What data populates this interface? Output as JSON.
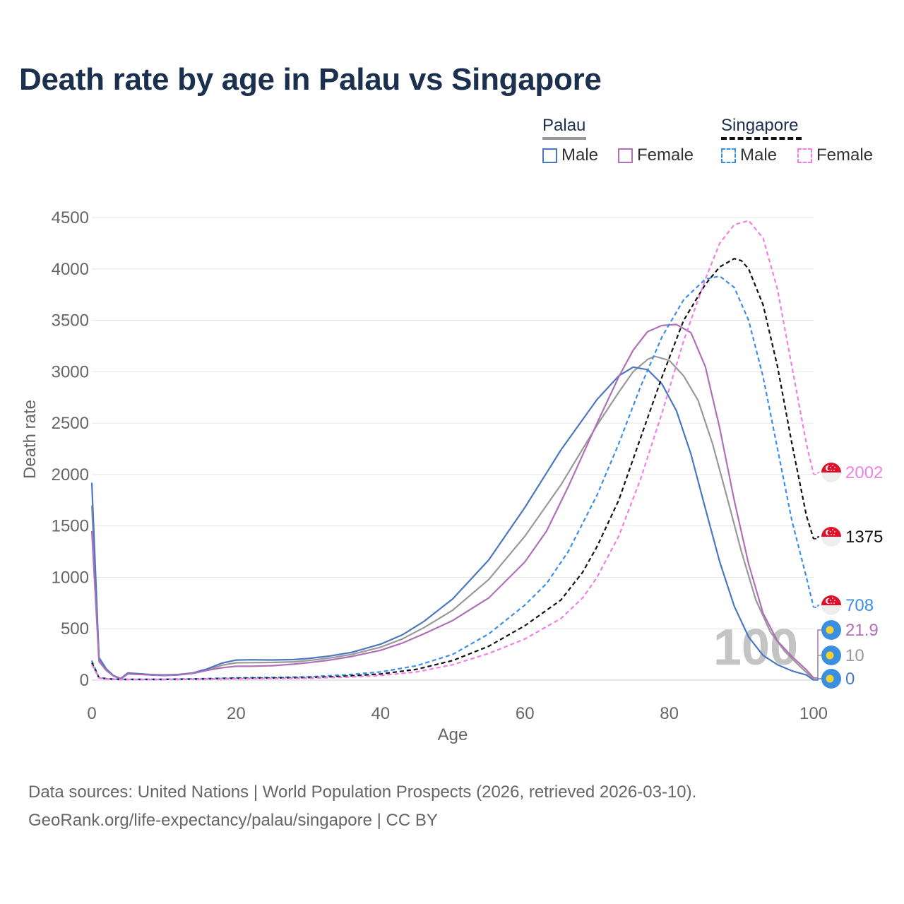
{
  "title": "Death rate by age in Palau vs Singapore",
  "legend": {
    "groups": [
      {
        "name": "Palau",
        "line_color": "#999999",
        "dash": false,
        "items": [
          {
            "label": "Male",
            "color": "#4a78c0"
          },
          {
            "label": "Female",
            "color": "#b070b8"
          }
        ]
      },
      {
        "name": "Singapore",
        "line_color": "#111111",
        "dash": true,
        "items": [
          {
            "label": "Male",
            "color": "#3c8ee8"
          },
          {
            "label": "Female",
            "color": "#f080e8"
          }
        ]
      }
    ]
  },
  "watermark": "100",
  "end_labels": [
    {
      "value": "2002",
      "color": "#f080e8",
      "icon": "singapore-flag-icon"
    },
    {
      "value": "1375",
      "color": "#111111",
      "icon": "singapore-flag-icon"
    },
    {
      "value": "708",
      "color": "#3c8ee8",
      "icon": "singapore-flag-icon"
    },
    {
      "value": "21.9",
      "color": "#b070b8",
      "icon": "palau-flag-icon"
    },
    {
      "value": "10",
      "color": "#999999",
      "icon": "palau-flag-icon"
    },
    {
      "value": "0",
      "color": "#4a78c0",
      "icon": "palau-flag-icon"
    }
  ],
  "sources": {
    "line1": "Data sources: United Nations | World Population Prospects (2026, retrieved 2026-03-10).",
    "line2": "GeoRank.org/life-expectancy/palau/singapore | CC BY"
  },
  "chart_data": {
    "type": "line",
    "xlabel": "Age",
    "ylabel": "Death rate",
    "xlim": [
      0,
      100
    ],
    "ylim": [
      0,
      4500
    ],
    "xticks": [
      0,
      20,
      40,
      60,
      80,
      100
    ],
    "yticks": [
      0,
      500,
      1000,
      1500,
      2000,
      2500,
      3000,
      3500,
      4000,
      4500
    ],
    "grid": true,
    "series": [
      {
        "name": "Palau Male",
        "color": "#4a78c0",
        "dash": false,
        "points": [
          [
            0,
            1920
          ],
          [
            1,
            220
          ],
          [
            2,
            110
          ],
          [
            3,
            45
          ],
          [
            4,
            15
          ],
          [
            5,
            70
          ],
          [
            8,
            55
          ],
          [
            10,
            50
          ],
          [
            12,
            55
          ],
          [
            14,
            70
          ],
          [
            16,
            110
          ],
          [
            18,
            165
          ],
          [
            20,
            195
          ],
          [
            22,
            198
          ],
          [
            25,
            196
          ],
          [
            28,
            200
          ],
          [
            30,
            210
          ],
          [
            33,
            235
          ],
          [
            36,
            270
          ],
          [
            40,
            350
          ],
          [
            43,
            440
          ],
          [
            46,
            570
          ],
          [
            50,
            790
          ],
          [
            55,
            1170
          ],
          [
            60,
            1680
          ],
          [
            65,
            2240
          ],
          [
            70,
            2730
          ],
          [
            73,
            2960
          ],
          [
            75,
            3045
          ],
          [
            77,
            3020
          ],
          [
            79,
            2880
          ],
          [
            81,
            2620
          ],
          [
            83,
            2200
          ],
          [
            85,
            1670
          ],
          [
            87,
            1150
          ],
          [
            89,
            720
          ],
          [
            91,
            420
          ],
          [
            93,
            240
          ],
          [
            95,
            150
          ],
          [
            97,
            90
          ],
          [
            99,
            50
          ],
          [
            100,
            0
          ]
        ]
      },
      {
        "name": "Palau Female",
        "color": "#b070b8",
        "dash": false,
        "points": [
          [
            0,
            1450
          ],
          [
            1,
            180
          ],
          [
            2,
            95
          ],
          [
            3,
            40
          ],
          [
            4,
            12
          ],
          [
            5,
            60
          ],
          [
            8,
            50
          ],
          [
            10,
            45
          ],
          [
            12,
            50
          ],
          [
            14,
            65
          ],
          [
            16,
            95
          ],
          [
            18,
            120
          ],
          [
            20,
            135
          ],
          [
            22,
            135
          ],
          [
            25,
            140
          ],
          [
            28,
            155
          ],
          [
            30,
            170
          ],
          [
            33,
            195
          ],
          [
            36,
            230
          ],
          [
            40,
            290
          ],
          [
            43,
            360
          ],
          [
            46,
            450
          ],
          [
            50,
            580
          ],
          [
            55,
            800
          ],
          [
            60,
            1150
          ],
          [
            63,
            1450
          ],
          [
            66,
            1880
          ],
          [
            70,
            2500
          ],
          [
            73,
            2950
          ],
          [
            75,
            3210
          ],
          [
            77,
            3390
          ],
          [
            79,
            3450
          ],
          [
            81,
            3460
          ],
          [
            83,
            3380
          ],
          [
            85,
            3050
          ],
          [
            87,
            2450
          ],
          [
            89,
            1750
          ],
          [
            91,
            1130
          ],
          [
            93,
            650
          ],
          [
            95,
            380
          ],
          [
            97,
            230
          ],
          [
            99,
            100
          ],
          [
            100,
            21.9
          ]
        ]
      },
      {
        "name": "Palau Both",
        "color": "#999999",
        "dash": false,
        "points": [
          [
            0,
            1700
          ],
          [
            1,
            200
          ],
          [
            2,
            100
          ],
          [
            3,
            42
          ],
          [
            4,
            14
          ],
          [
            5,
            65
          ],
          [
            8,
            52
          ],
          [
            10,
            48
          ],
          [
            12,
            52
          ],
          [
            14,
            68
          ],
          [
            16,
            100
          ],
          [
            18,
            145
          ],
          [
            20,
            168
          ],
          [
            22,
            170
          ],
          [
            25,
            172
          ],
          [
            28,
            178
          ],
          [
            30,
            190
          ],
          [
            33,
            215
          ],
          [
            36,
            250
          ],
          [
            40,
            320
          ],
          [
            43,
            400
          ],
          [
            46,
            510
          ],
          [
            50,
            680
          ],
          [
            55,
            980
          ],
          [
            60,
            1400
          ],
          [
            65,
            1900
          ],
          [
            70,
            2480
          ],
          [
            73,
            2800
          ],
          [
            75,
            3000
          ],
          [
            77,
            3120
          ],
          [
            78,
            3150
          ],
          [
            80,
            3110
          ],
          [
            82,
            2960
          ],
          [
            84,
            2720
          ],
          [
            86,
            2300
          ],
          [
            88,
            1780
          ],
          [
            90,
            1250
          ],
          [
            92,
            780
          ],
          [
            94,
            470
          ],
          [
            96,
            280
          ],
          [
            98,
            140
          ],
          [
            100,
            10
          ]
        ]
      },
      {
        "name": "Singapore Male",
        "color": "#3c8ee8",
        "dash": true,
        "points": [
          [
            0,
            190
          ],
          [
            1,
            25
          ],
          [
            2,
            15
          ],
          [
            3,
            10
          ],
          [
            4,
            8
          ],
          [
            5,
            8
          ],
          [
            10,
            8
          ],
          [
            15,
            14
          ],
          [
            20,
            22
          ],
          [
            25,
            26
          ],
          [
            30,
            32
          ],
          [
            35,
            50
          ],
          [
            40,
            80
          ],
          [
            45,
            140
          ],
          [
            50,
            250
          ],
          [
            55,
            450
          ],
          [
            60,
            730
          ],
          [
            63,
            940
          ],
          [
            66,
            1250
          ],
          [
            70,
            1800
          ],
          [
            73,
            2300
          ],
          [
            76,
            2850
          ],
          [
            79,
            3340
          ],
          [
            82,
            3700
          ],
          [
            85,
            3900
          ],
          [
            87,
            3930
          ],
          [
            89,
            3820
          ],
          [
            91,
            3500
          ],
          [
            93,
            2950
          ],
          [
            95,
            2250
          ],
          [
            97,
            1550
          ],
          [
            99,
            1000
          ],
          [
            100,
            708
          ]
        ]
      },
      {
        "name": "Singapore Female",
        "color": "#f080e8",
        "dash": true,
        "points": [
          [
            0,
            150
          ],
          [
            1,
            20
          ],
          [
            2,
            12
          ],
          [
            3,
            8
          ],
          [
            4,
            6
          ],
          [
            5,
            6
          ],
          [
            10,
            6
          ],
          [
            15,
            9
          ],
          [
            20,
            13
          ],
          [
            25,
            15
          ],
          [
            30,
            18
          ],
          [
            35,
            28
          ],
          [
            40,
            45
          ],
          [
            45,
            80
          ],
          [
            50,
            150
          ],
          [
            55,
            260
          ],
          [
            60,
            400
          ],
          [
            65,
            600
          ],
          [
            68,
            800
          ],
          [
            70,
            1000
          ],
          [
            73,
            1400
          ],
          [
            76,
            1950
          ],
          [
            79,
            2600
          ],
          [
            82,
            3300
          ],
          [
            85,
            3900
          ],
          [
            87,
            4250
          ],
          [
            89,
            4430
          ],
          [
            91,
            4470
          ],
          [
            93,
            4300
          ],
          [
            95,
            3800
          ],
          [
            97,
            3050
          ],
          [
            99,
            2300
          ],
          [
            100,
            2002
          ]
        ]
      },
      {
        "name": "Singapore Both",
        "color": "#111111",
        "dash": true,
        "points": [
          [
            0,
            170
          ],
          [
            1,
            22
          ],
          [
            2,
            14
          ],
          [
            3,
            9
          ],
          [
            4,
            7
          ],
          [
            5,
            7
          ],
          [
            10,
            7
          ],
          [
            15,
            11
          ],
          [
            20,
            17
          ],
          [
            25,
            20
          ],
          [
            30,
            25
          ],
          [
            35,
            38
          ],
          [
            40,
            60
          ],
          [
            45,
            105
          ],
          [
            50,
            190
          ],
          [
            55,
            330
          ],
          [
            60,
            530
          ],
          [
            65,
            780
          ],
          [
            68,
            1050
          ],
          [
            70,
            1300
          ],
          [
            73,
            1750
          ],
          [
            76,
            2350
          ],
          [
            79,
            2950
          ],
          [
            82,
            3500
          ],
          [
            85,
            3850
          ],
          [
            87,
            4020
          ],
          [
            89,
            4100
          ],
          [
            90,
            4080
          ],
          [
            91,
            4000
          ],
          [
            93,
            3650
          ],
          [
            95,
            3050
          ],
          [
            97,
            2300
          ],
          [
            99,
            1600
          ],
          [
            100,
            1375
          ]
        ]
      }
    ]
  }
}
